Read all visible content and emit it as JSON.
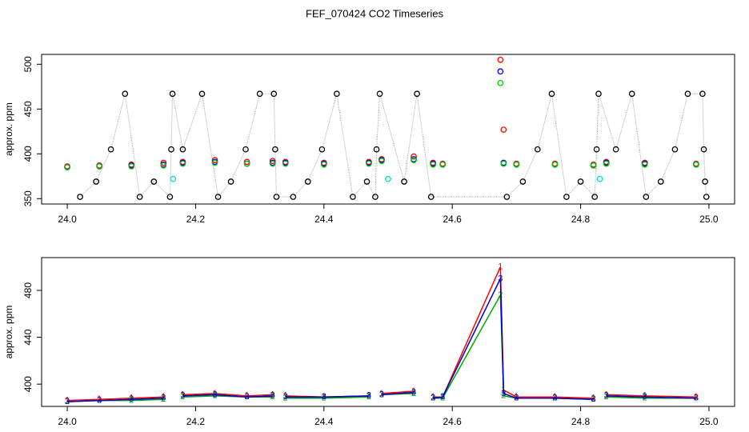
{
  "chart_data": [
    {
      "type": "scatter",
      "title": "FEF_070424  CO2 Timeseries",
      "y_label": "approx. ppm",
      "xlim": [
        23.96,
        25.04
      ],
      "ylim": [
        344,
        511
      ],
      "xticks": [
        {
          "value": 24.0,
          "label": "24.0"
        },
        {
          "value": 24.2,
          "label": "24.2"
        },
        {
          "value": 24.4,
          "label": "24.4"
        },
        {
          "value": 24.6,
          "label": "24.6"
        },
        {
          "value": 24.8,
          "label": "24.8"
        },
        {
          "value": 25.0,
          "label": "25.0"
        }
      ],
      "yticks": [
        350,
        400,
        450,
        500
      ],
      "series": [
        {
          "name": "black",
          "color": "#000000",
          "line_color": "#aaaaaa",
          "x": [
            24.02,
            24.045,
            24.068,
            24.09,
            24.113,
            24.135,
            24.16,
            24.162,
            24.164,
            24.18,
            24.21,
            24.235,
            24.255,
            24.278,
            24.3,
            24.322,
            24.324,
            24.326,
            24.352,
            24.375,
            24.397,
            24.42,
            24.445,
            24.467,
            24.48,
            24.482,
            24.487,
            24.525,
            24.545,
            24.567,
            24.685,
            24.71,
            24.733,
            24.755,
            24.778,
            24.8,
            24.822,
            24.825,
            24.828,
            24.855,
            24.88,
            24.902,
            24.925,
            24.947,
            24.967,
            24.99,
            24.992,
            24.994,
            24.996
          ],
          "values": [
            352,
            369,
            405,
            467,
            352,
            369,
            352,
            405,
            467,
            405,
            467,
            352,
            369,
            405,
            467,
            467,
            405,
            352,
            352,
            369,
            405,
            467,
            352,
            369,
            352,
            405,
            467,
            369,
            467,
            352,
            352,
            369,
            405,
            467,
            352,
            369,
            352,
            405,
            467,
            405,
            467,
            352,
            369,
            405,
            467,
            467,
            405,
            369,
            352
          ]
        },
        {
          "name": "red",
          "color": "#ff0000",
          "x": [
            24.0,
            24.05,
            24.1,
            24.15,
            24.18,
            24.23,
            24.28,
            24.32,
            24.34,
            24.4,
            24.47,
            24.49,
            24.54,
            24.57,
            24.585,
            24.675,
            24.68,
            24.7,
            24.76,
            24.82,
            24.84,
            24.9,
            24.98
          ],
          "values": [
            386,
            387,
            388,
            390,
            391,
            393,
            391,
            392,
            391,
            390,
            391,
            394,
            397,
            390,
            389,
            505,
            427,
            389,
            389,
            388,
            391,
            390,
            389
          ]
        },
        {
          "name": "blue",
          "color": "#0000ff",
          "x": [
            24.0,
            24.05,
            24.1,
            24.15,
            24.18,
            24.23,
            24.28,
            24.32,
            24.34,
            24.4,
            24.47,
            24.49,
            24.54,
            24.57,
            24.585,
            24.675,
            24.68,
            24.7,
            24.76,
            24.82,
            24.84,
            24.9,
            24.98
          ],
          "values": [
            385,
            386,
            387,
            388,
            390,
            391,
            389,
            390,
            390,
            389,
            390,
            393,
            394,
            389,
            388,
            492,
            390,
            388,
            388,
            387,
            390,
            389,
            388
          ]
        },
        {
          "name": "green",
          "color": "#00cc00",
          "x": [
            24.0,
            24.05,
            24.1,
            24.15,
            24.18,
            24.23,
            24.28,
            24.32,
            24.34,
            24.4,
            24.47,
            24.49,
            24.54,
            24.57,
            24.585,
            24.675,
            24.68,
            24.7,
            24.76,
            24.82,
            24.84,
            24.9,
            24.98
          ],
          "values": [
            385,
            386,
            386,
            387,
            389,
            390,
            389,
            389,
            389,
            388,
            389,
            392,
            393,
            388,
            388,
            479,
            389,
            388,
            388,
            387,
            389,
            388,
            388
          ]
        },
        {
          "name": "cyan",
          "color": "#00dddd",
          "x": [
            24.165,
            24.5,
            24.83
          ],
          "values": [
            372,
            372,
            372
          ]
        }
      ]
    },
    {
      "type": "line",
      "y_label": "approx. ppm",
      "xlim": [
        23.96,
        25.04
      ],
      "ylim": [
        381,
        508
      ],
      "xticks": [
        {
          "value": 24.0,
          "label": "24.0"
        },
        {
          "value": 24.2,
          "label": "24.2"
        },
        {
          "value": 24.4,
          "label": "24.4"
        },
        {
          "value": 24.6,
          "label": "24.6"
        },
        {
          "value": 24.8,
          "label": "24.8"
        },
        {
          "value": 25.0,
          "label": "25.0"
        }
      ],
      "yticks": [
        400,
        440,
        480
      ],
      "x": [
        24.0,
        24.05,
        24.1,
        24.15,
        24.165,
        24.18,
        24.23,
        24.28,
        24.32,
        24.33,
        24.34,
        24.4,
        24.47,
        24.48,
        24.49,
        24.54,
        24.56,
        24.57,
        24.585,
        24.675,
        24.68,
        24.7,
        24.76,
        24.82,
        24.83,
        24.84,
        24.9,
        24.98
      ],
      "series": [
        {
          "name": "red",
          "color": "#ff0000",
          "marker": "1",
          "values": [
            386,
            387,
            388,
            389,
            null,
            391,
            392,
            390,
            391,
            null,
            390,
            389,
            390,
            null,
            392,
            394,
            null,
            389,
            389,
            500,
            395,
            389,
            389,
            388,
            null,
            391,
            390,
            389
          ]
        },
        {
          "name": "green",
          "color": "#00aa00",
          "marker": "2",
          "values": [
            385,
            386,
            386,
            387,
            null,
            389,
            390,
            389,
            389,
            null,
            388,
            388,
            389,
            null,
            391,
            392,
            null,
            388,
            388,
            476,
            390,
            388,
            388,
            387,
            null,
            389,
            388,
            388
          ]
        },
        {
          "name": "blue",
          "color": "#0000cc",
          "marker": "3",
          "values": [
            385,
            386,
            387,
            388,
            null,
            390,
            391,
            389,
            390,
            null,
            389,
            389,
            390,
            null,
            391,
            393,
            null,
            388,
            389,
            490,
            392,
            388,
            388,
            387,
            null,
            390,
            389,
            388
          ]
        }
      ]
    }
  ]
}
